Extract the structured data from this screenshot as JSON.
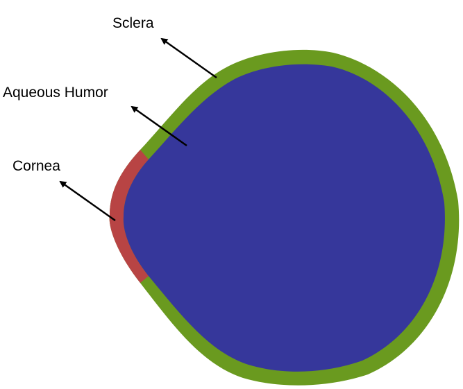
{
  "labels": {
    "sclera": "Sclera",
    "aqueous_humor": "Aqueous Humor",
    "cornea": "Cornea"
  },
  "colors": {
    "sclera": "#6a9a1f",
    "aqueous_humor": "#36379b",
    "cornea": "#b84444",
    "arrow": "#000000"
  }
}
